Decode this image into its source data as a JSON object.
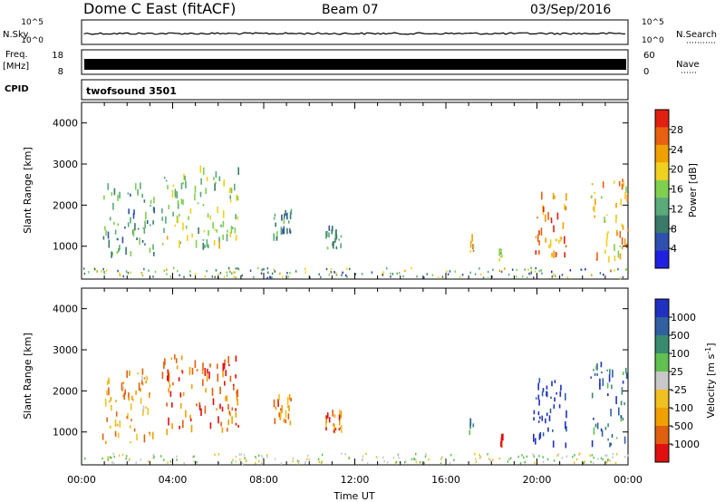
{
  "header": {
    "station": "Dome C East (fitACF)",
    "beam": "Beam 07",
    "date": "03/Sep/2016"
  },
  "status_panels": {
    "nsky_label": "N.Sky",
    "nsky_ticks": [
      "10^5",
      "10^0"
    ],
    "nsearch_label": "N.Search",
    "nsearch_ticks": [
      "10^5",
      "10^0"
    ],
    "freq_label": "Freq.",
    "freq_unit": "[MHz]",
    "freq_ticks": [
      "18",
      "8"
    ],
    "nave_label": "Nave",
    "nave_ticks": [
      "60",
      "0"
    ],
    "cpid_label": "CPID",
    "cpid_value": "twofsound 3501"
  },
  "chart_data": [
    {
      "type": "heatmap",
      "name": "power",
      "ylabel": "Slant Range [km]",
      "yticks": [
        "1000",
        "2000",
        "3000",
        "4000"
      ],
      "ylim": [
        200,
        4500
      ],
      "xlim": [
        0,
        24
      ],
      "colorbar_label": "Power [dB]",
      "colorbar_ticks": [
        "28",
        "24",
        "20",
        "16",
        "12",
        "8",
        "4"
      ],
      "colorscale": [
        "#2020e0",
        "#3050b0",
        "#3a7a6a",
        "#5aaa7a",
        "#80d050",
        "#f0d020",
        "#f0a000",
        "#e86010",
        "#e02010"
      ],
      "echo_regions": [
        {
          "t0": 0.9,
          "t1": 3.2,
          "r0": 700,
          "r1": 2400,
          "level": 0.35
        },
        {
          "t0": 3.5,
          "t1": 6.9,
          "r0": 900,
          "r1": 2800,
          "level": 0.5
        },
        {
          "t0": 8.4,
          "t1": 9.2,
          "r0": 1100,
          "r1": 1800,
          "level": 0.3
        },
        {
          "t0": 10.7,
          "t1": 11.4,
          "r0": 900,
          "r1": 1400,
          "level": 0.3
        },
        {
          "t0": 17.0,
          "t1": 17.2,
          "r0": 700,
          "r1": 1200,
          "level": 0.7
        },
        {
          "t0": 18.3,
          "t1": 18.5,
          "r0": 600,
          "r1": 900,
          "level": 0.5
        },
        {
          "t0": 19.8,
          "t1": 21.3,
          "r0": 600,
          "r1": 2200,
          "level": 0.8
        },
        {
          "t0": 22.3,
          "t1": 24.0,
          "r0": 600,
          "r1": 2600,
          "level": 0.7
        }
      ]
    },
    {
      "type": "heatmap",
      "name": "velocity",
      "ylabel": "Slant Range [km]",
      "yticks": [
        "1000",
        "2000",
        "3000",
        "4000"
      ],
      "ylim": [
        200,
        4500
      ],
      "xlim": [
        0,
        24
      ],
      "xticks": [
        "00:00",
        "04:00",
        "08:00",
        "12:00",
        "16:00",
        "20:00",
        "00:00"
      ],
      "xlabel": "Time UT",
      "colorbar_label": "Velocity [m s",
      "colorbar_label_sup": "-1",
      "colorbar_label_end": "]",
      "colorbar_ticks": [
        "1000",
        "500",
        "100",
        "25",
        "-25",
        "-100",
        "-500",
        "-1000"
      ],
      "colorscale": [
        "#2030c0",
        "#3060a0",
        "#3a8a70",
        "#60c050",
        "#c8c8c8",
        "#f0c020",
        "#f0a000",
        "#e06010",
        "#e01010"
      ],
      "echo_regions": [
        {
          "t0": 0.9,
          "t1": 3.2,
          "r0": 700,
          "r1": 2400,
          "level": 0.7
        },
        {
          "t0": 3.5,
          "t1": 6.9,
          "r0": 900,
          "r1": 2800,
          "level": 0.85
        },
        {
          "t0": 8.4,
          "t1": 9.2,
          "r0": 1100,
          "r1": 1800,
          "level": 0.75
        },
        {
          "t0": 10.7,
          "t1": 11.4,
          "r0": 900,
          "r1": 1400,
          "level": 0.8
        },
        {
          "t0": 17.0,
          "t1": 17.2,
          "r0": 700,
          "r1": 1200,
          "level": 0.3
        },
        {
          "t0": 18.3,
          "t1": 18.5,
          "r0": 600,
          "r1": 900,
          "level": 0.95
        },
        {
          "t0": 19.8,
          "t1": 21.3,
          "r0": 600,
          "r1": 2200,
          "level": 0.05
        },
        {
          "t0": 22.3,
          "t1": 24.0,
          "r0": 600,
          "r1": 2600,
          "level": 0.2
        }
      ]
    }
  ]
}
